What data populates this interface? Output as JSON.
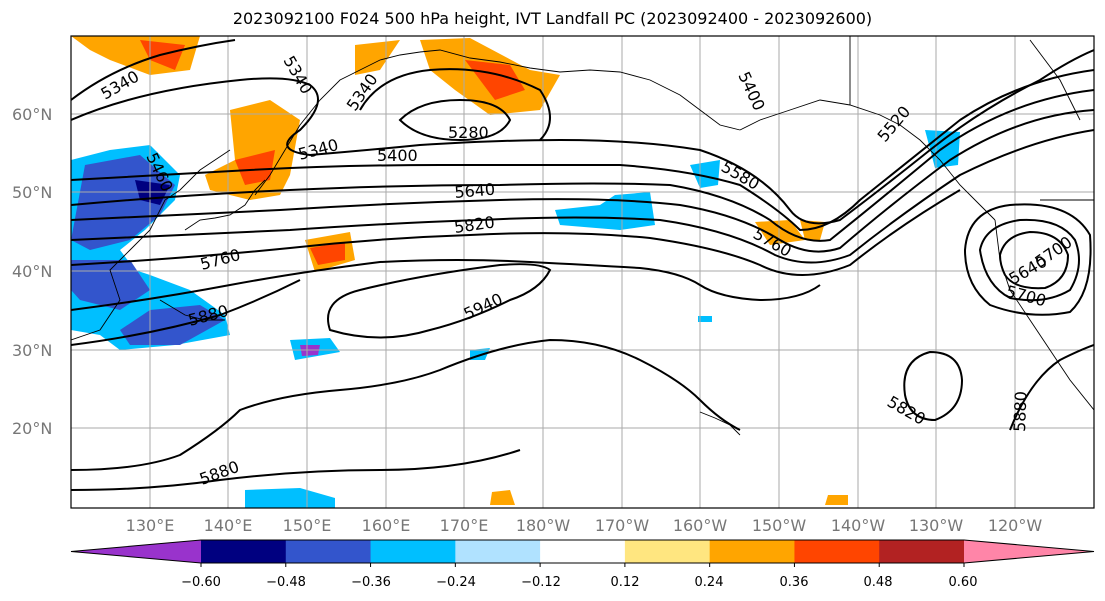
{
  "title": "2023092100 F024 500 hPa height, IVT Landfall PC (2023092400 - 2023092600)",
  "map": {
    "lat_labels": [
      "60°N",
      "50°N",
      "40°N",
      "30°N",
      "20°N"
    ],
    "lon_labels": [
      "130°E",
      "140°E",
      "150°E",
      "160°E",
      "170°E",
      "180°W",
      "170°W",
      "160°W",
      "150°W",
      "140°W",
      "130°W",
      "120°W"
    ],
    "contour_labels": [
      "5340",
      "5340",
      "5340",
      "5340",
      "5280",
      "5400",
      "5400",
      "5460",
      "5520",
      "5580",
      "5640",
      "5700",
      "5760",
      "5760",
      "5820",
      "5880",
      "5880",
      "5940",
      "5820",
      "5880",
      "5640",
      "5700"
    ]
  },
  "colorbar": {
    "ticks": [
      "−0.60",
      "−0.48",
      "−0.36",
      "−0.24",
      "−0.12",
      "0.12",
      "0.24",
      "0.36",
      "0.48",
      "0.60"
    ],
    "colors": [
      "#9933cc",
      "#000080",
      "#3355cc",
      "#00bfff",
      "#b0e2ff",
      "#ffffff",
      "#ffe680",
      "#ffa500",
      "#ff4500",
      "#b22222",
      "#ff85a8"
    ]
  }
}
